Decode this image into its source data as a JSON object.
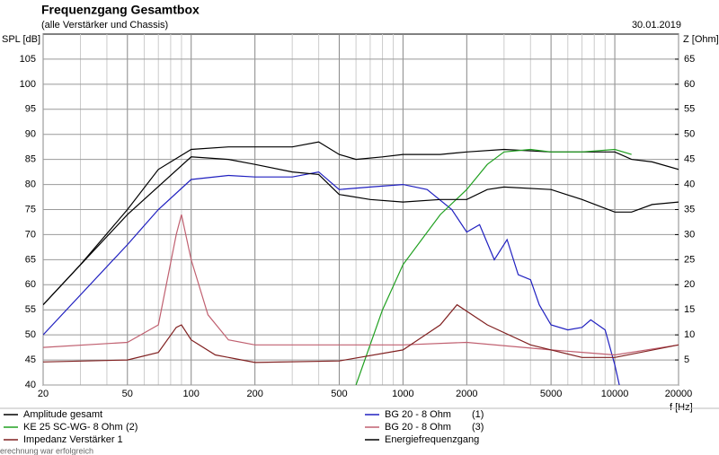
{
  "chart_data": {
    "type": "line",
    "title": "Frequenzgang Gesamtbox",
    "subtitle": "(alle Verstärker und Chassis)",
    "date": "30.01.2019",
    "ylabel": "SPL [dB]",
    "y2label": "Z [Ohm]",
    "xlabel": "f [Hz]",
    "status": "erechnung war erfolgreich",
    "xscale": "log",
    "grid": true,
    "xlim": [
      20,
      20000
    ],
    "xticks": [
      20,
      50,
      100,
      200,
      500,
      1000,
      2000,
      5000,
      10000,
      20000
    ],
    "xgrid_minor": [
      30,
      40,
      60,
      70,
      80,
      90,
      300,
      400,
      600,
      700,
      800,
      900,
      3000,
      4000,
      6000,
      7000,
      8000,
      9000
    ],
    "ylim": [
      40,
      110
    ],
    "yticks": [
      40,
      45,
      50,
      55,
      60,
      65,
      70,
      75,
      80,
      85,
      90,
      95,
      100,
      105
    ],
    "y2lim": [
      0,
      70
    ],
    "y2ticks": [
      5,
      10,
      15,
      20,
      25,
      30,
      35,
      40,
      45,
      50,
      55,
      60,
      65
    ],
    "series": [
      {
        "name": "Amplitude gesamt",
        "color": "#000000",
        "x": [
          20,
          30,
          50,
          70,
          100,
          150,
          200,
          300,
          400,
          500,
          600,
          800,
          1000,
          1500,
          2000,
          3000,
          5000,
          7000,
          10000,
          12000,
          15000,
          20000
        ],
        "values": [
          56,
          64,
          75,
          83,
          87,
          87.5,
          87.5,
          87.5,
          88.5,
          86,
          85,
          85.5,
          86,
          86,
          86.5,
          87,
          86.5,
          86.5,
          86.5,
          85,
          84.5,
          83
        ]
      },
      {
        "name": "BG 20 - 8 Ohm",
        "number": "(1)",
        "color": "#2020c0",
        "x": [
          20,
          50,
          70,
          100,
          150,
          200,
          300,
          400,
          500,
          700,
          1000,
          1300,
          1700,
          2000,
          2300,
          2700,
          3100,
          3500,
          4000,
          4400,
          5000,
          6000,
          7000,
          7700,
          9000,
          10000,
          10500
        ],
        "values": [
          50,
          68,
          75,
          81,
          81.8,
          81.5,
          81.5,
          82.5,
          79,
          79.5,
          80,
          79,
          75,
          70.5,
          72,
          65,
          69,
          62,
          61,
          56,
          52,
          51,
          51.5,
          53,
          51,
          44,
          40
        ]
      },
      {
        "name": "KE 25 SC-WG- 8 Ohm",
        "number": "(2)",
        "color": "#20a020",
        "x": [
          600,
          800,
          1000,
          1500,
          2000,
          2500,
          3000,
          4000,
          5000,
          7000,
          10000,
          12000
        ],
        "values": [
          40,
          55,
          64,
          74,
          79,
          84,
          86.5,
          87,
          86.5,
          86.5,
          87,
          86
        ]
      },
      {
        "name": "BG 20 - 8 Ohm",
        "number": "(3)",
        "color": "#c06070",
        "axis": "y2",
        "x": [
          20,
          50,
          70,
          85,
          90,
          100,
          120,
          150,
          200,
          500,
          1000,
          2000,
          5000,
          10000,
          20000
        ],
        "values": [
          7.5,
          8.5,
          12,
          30,
          34,
          25,
          14,
          9,
          8,
          8,
          8,
          8.5,
          7,
          6,
          8
        ]
      },
      {
        "name": "Impedanz Verstärker 1",
        "color": "#802020",
        "axis": "y2",
        "x": [
          20,
          50,
          70,
          85,
          90,
          100,
          130,
          200,
          500,
          1000,
          1500,
          1800,
          2500,
          4000,
          7000,
          10000,
          20000
        ],
        "values": [
          4.6,
          5,
          6.5,
          11.5,
          12,
          9,
          6,
          4.5,
          4.8,
          7,
          12,
          16,
          12,
          8,
          5.5,
          5.5,
          8
        ]
      },
      {
        "name": "Energiefrequenzgang",
        "color": "#000000",
        "x": [
          20,
          50,
          100,
          150,
          200,
          300,
          400,
          500,
          700,
          1000,
          1500,
          2000,
          2500,
          3000,
          5000,
          7000,
          10000,
          12000,
          15000,
          20000
        ],
        "values": [
          56,
          74,
          85.5,
          85,
          84,
          82.5,
          82,
          78,
          77,
          76.5,
          77,
          77,
          79,
          79.5,
          79,
          77,
          74.5,
          74.5,
          76,
          76.5
        ]
      }
    ]
  }
}
